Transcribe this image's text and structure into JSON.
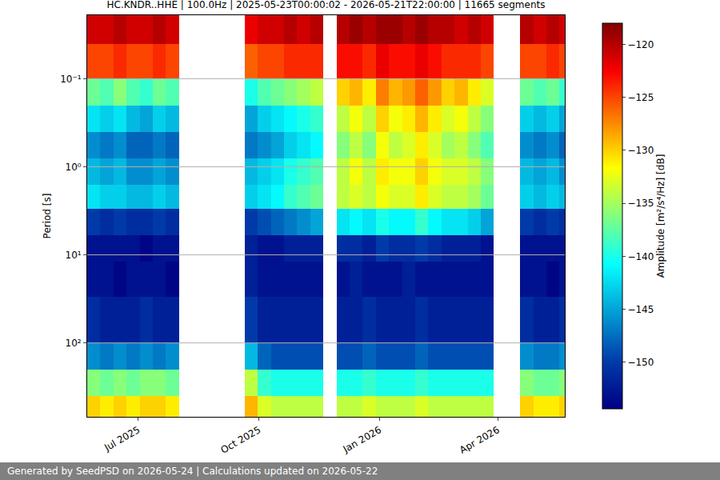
{
  "chart_data": {
    "type": "heatmap",
    "title": "HC.KNDR..HHE | 100.0Hz | 2025-05-23T00:00:02 - 2026-05-21T22:00:00 | 11665 segments",
    "ylabel": "Period [s]",
    "colorbar_title": "Amplitude [m²/s⁴/Hz] [dB]",
    "footer": "Generated by SeedPSD on 2026-05-24 | Calculations updated on 2026-05-22",
    "x_bins": [
      "2025-05-23",
      "2025-06-02",
      "2025-06-12",
      "2025-06-22",
      "2025-07-02",
      "2025-07-12",
      "2025-07-22",
      "2025-08-01",
      "2025-08-11",
      "2025-08-21",
      "2025-08-31",
      "2025-09-10",
      "2025-09-20",
      "2025-09-30",
      "2025-10-10",
      "2025-10-20",
      "2025-10-30",
      "2025-11-09",
      "2025-11-19",
      "2025-11-29",
      "2025-12-09",
      "2025-12-19",
      "2025-12-29",
      "2026-01-08",
      "2026-01-18",
      "2026-01-28",
      "2026-02-07",
      "2026-02-17",
      "2026-02-27",
      "2026-03-09",
      "2026-03-19",
      "2026-03-29",
      "2026-04-08",
      "2026-04-18",
      "2026-04-28",
      "2026-05-08",
      "2026-05-18",
      "2026-05-28"
    ],
    "y_bins": [
      0.019,
      0.04,
      0.1,
      0.2,
      0.4,
      0.8,
      1.6,
      3,
      6,
      12,
      30,
      100,
      200,
      400,
      690
    ],
    "z": [
      [
        -121,
        -121,
        -120,
        -121,
        -121,
        -120,
        -121,
        null,
        null,
        null,
        null,
        null,
        -122,
        -121,
        -121,
        -120,
        -121,
        -120,
        null,
        -120,
        -119,
        -120,
        -119,
        -119,
        -120,
        -119,
        -120,
        -120,
        -121,
        -120,
        -121,
        null,
        null,
        -120,
        -121,
        -120,
        -121
      ],
      [
        -125,
        -125,
        -124,
        -125,
        -125,
        -124,
        -125,
        null,
        null,
        null,
        null,
        null,
        -126,
        -125,
        -125,
        -124,
        -124,
        -124,
        null,
        -123,
        -123,
        -124,
        -122,
        -123,
        -123,
        -122,
        -123,
        -124,
        -124,
        -124,
        -125,
        null,
        null,
        -125,
        -125,
        -124,
        -125
      ],
      [
        -137,
        -138,
        -136,
        -138,
        -139,
        -137,
        -138,
        null,
        null,
        null,
        null,
        null,
        -140,
        -138,
        -137,
        -136,
        -135,
        -134,
        null,
        -130,
        -129,
        -131,
        -127,
        -129,
        -128,
        -126,
        -128,
        -130,
        -129,
        -131,
        -133,
        null,
        null,
        -137,
        -138,
        -137,
        -139
      ],
      [
        -142,
        -143,
        -142,
        -144,
        -145,
        -143,
        -144,
        null,
        null,
        null,
        null,
        null,
        -145,
        -143,
        -142,
        -141,
        -140,
        -139,
        null,
        -134,
        -132,
        -134,
        -130,
        -132,
        -131,
        -129,
        -131,
        -133,
        -132,
        -134,
        -136,
        null,
        null,
        -143,
        -144,
        -143,
        -145
      ],
      [
        -146,
        -147,
        -146,
        -148,
        -148,
        -147,
        -148,
        null,
        null,
        null,
        null,
        null,
        -147,
        -146,
        -145,
        -143,
        -142,
        -141,
        null,
        -136,
        -134,
        -136,
        -132,
        -134,
        -133,
        -131,
        -133,
        -135,
        -134,
        -136,
        -138,
        null,
        null,
        -146,
        -147,
        -146,
        -148
      ],
      [
        -144,
        -145,
        -144,
        -146,
        -146,
        -145,
        -146,
        null,
        null,
        null,
        null,
        null,
        -144,
        -143,
        -142,
        -140,
        -139,
        -138,
        null,
        -134,
        -132,
        -134,
        -131,
        -132,
        -132,
        -130,
        -132,
        -133,
        -133,
        -134,
        -136,
        null,
        null,
        -144,
        -145,
        -144,
        -146
      ],
      [
        -142,
        -143,
        -143,
        -144,
        -144,
        -143,
        -144,
        null,
        null,
        null,
        null,
        null,
        -143,
        -142,
        -141,
        -139,
        -138,
        -137,
        null,
        -134,
        -133,
        -134,
        -132,
        -133,
        -133,
        -131,
        -133,
        -134,
        -134,
        -135,
        -137,
        null,
        null,
        -143,
        -144,
        -143,
        -144
      ],
      [
        -150,
        -151,
        -150,
        -151,
        -151,
        -150,
        -151,
        null,
        null,
        null,
        null,
        null,
        -150,
        -149,
        -148,
        -147,
        -146,
        -145,
        null,
        -142,
        -141,
        -142,
        -140,
        -141,
        -141,
        -139,
        -141,
        -142,
        -142,
        -143,
        -145,
        null,
        null,
        -150,
        -151,
        -150,
        -151
      ],
      [
        -153,
        -153,
        -153,
        -153,
        -154,
        -153,
        -153,
        null,
        null,
        null,
        null,
        null,
        -152,
        -153,
        -153,
        -152,
        -152,
        -152,
        null,
        -151,
        -151,
        -152,
        -150,
        -151,
        -151,
        -150,
        -151,
        -152,
        -152,
        -152,
        -153,
        null,
        null,
        -153,
        -153,
        -153,
        -153
      ],
      [
        -153,
        -153,
        -154,
        -153,
        -153,
        -153,
        -154,
        null,
        null,
        null,
        null,
        null,
        -152,
        -153,
        -153,
        -153,
        -153,
        -153,
        null,
        -153,
        -152,
        -153,
        -153,
        -153,
        -152,
        -153,
        -153,
        -153,
        -153,
        -153,
        -153,
        null,
        null,
        -153,
        -153,
        -154,
        -153
      ],
      [
        -151,
        -152,
        -152,
        -152,
        -151,
        -152,
        -152,
        null,
        null,
        null,
        null,
        null,
        -150,
        -152,
        -152,
        -152,
        -152,
        -152,
        null,
        -152,
        -152,
        -151,
        -152,
        -152,
        -152,
        -151,
        -152,
        -152,
        -152,
        -152,
        -152,
        null,
        null,
        -151,
        -152,
        -152,
        -151
      ],
      [
        -146,
        -147,
        -146,
        -147,
        -146,
        -147,
        -146,
        null,
        null,
        null,
        null,
        null,
        -144,
        -148,
        -149,
        -149,
        -149,
        -149,
        null,
        -149,
        -149,
        -148,
        -149,
        -149,
        -149,
        -148,
        -149,
        -149,
        -149,
        -149,
        -149,
        null,
        null,
        -146,
        -147,
        -147,
        -146
      ],
      [
        -136,
        -137,
        -136,
        -137,
        -136,
        -136,
        -137,
        null,
        null,
        null,
        null,
        null,
        -134,
        -139,
        -140,
        -140,
        -140,
        -140,
        null,
        -140,
        -140,
        -139,
        -140,
        -140,
        -140,
        -139,
        -140,
        -140,
        -140,
        -140,
        -140,
        null,
        null,
        -136,
        -137,
        -137,
        -136
      ],
      [
        -130,
        -131,
        -130,
        -131,
        -130,
        -130,
        -131,
        null,
        null,
        null,
        null,
        null,
        -129,
        -133,
        -134,
        -134,
        -134,
        -134,
        null,
        -134,
        -134,
        -133,
        -134,
        -134,
        -134,
        -133,
        -134,
        -134,
        -134,
        -134,
        -134,
        null,
        null,
        -130,
        -131,
        -131,
        -130
      ]
    ],
    "xlim": [
      "2025-05-23",
      "2026-05-22"
    ],
    "xticks": [
      {
        "value": "2025-07-01",
        "label": "Jul 2025"
      },
      {
        "value": "2025-10-01",
        "label": "Oct 2025"
      },
      {
        "value": "2026-01-01",
        "label": "Jan 2026"
      },
      {
        "value": "2026-04-01",
        "label": "Apr 2026"
      }
    ],
    "ylim": [
      690,
      0.019
    ],
    "yticks": [
      {
        "value": 0.1,
        "label": "10⁻¹"
      },
      {
        "value": 1,
        "label": "10⁰"
      },
      {
        "value": 10,
        "label": "10¹"
      },
      {
        "value": 100,
        "label": "10²"
      }
    ],
    "log": "y",
    "grid": true,
    "zlim": [
      -154.4,
      -118
    ],
    "zticks": [
      -150,
      -145,
      -140,
      -135,
      -130,
      -125,
      -120
    ]
  }
}
